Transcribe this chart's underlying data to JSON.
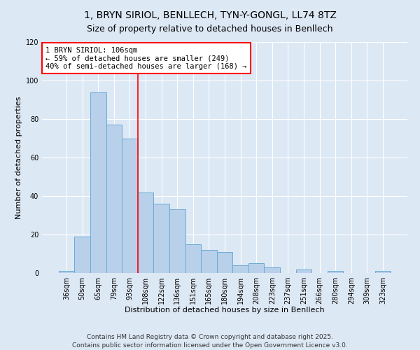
{
  "title": "1, BRYN SIRIOL, BENLLECH, TYN-Y-GONGL, LL74 8TZ",
  "subtitle": "Size of property relative to detached houses in Benllech",
  "xlabel": "Distribution of detached houses by size in Benllech",
  "ylabel": "Number of detached properties",
  "categories": [
    "36sqm",
    "50sqm",
    "65sqm",
    "79sqm",
    "93sqm",
    "108sqm",
    "122sqm",
    "136sqm",
    "151sqm",
    "165sqm",
    "180sqm",
    "194sqm",
    "208sqm",
    "223sqm",
    "237sqm",
    "251sqm",
    "266sqm",
    "280sqm",
    "294sqm",
    "309sqm",
    "323sqm"
  ],
  "values": [
    1,
    19,
    94,
    77,
    70,
    42,
    36,
    33,
    15,
    12,
    11,
    4,
    5,
    3,
    0,
    2,
    0,
    1,
    0,
    0,
    1
  ],
  "bar_color": "#b8d0ea",
  "bar_edge_color": "#6aaad4",
  "vline_color": "red",
  "vline_index": 4.5,
  "annotation_title": "1 BRYN SIRIOL: 106sqm",
  "annotation_line2": "← 59% of detached houses are smaller (249)",
  "annotation_line3": "40% of semi-detached houses are larger (168) →",
  "annotation_box_color": "white",
  "annotation_box_edge_color": "red",
  "ylim": [
    0,
    120
  ],
  "yticks": [
    0,
    20,
    40,
    60,
    80,
    100,
    120
  ],
  "footer_line1": "Contains HM Land Registry data © Crown copyright and database right 2025.",
  "footer_line2": "Contains public sector information licensed under the Open Government Licence v3.0.",
  "background_color": "#dde8f5",
  "plot_background_color": "#dde8f5",
  "title_fontsize": 10,
  "subtitle_fontsize": 9,
  "axis_label_fontsize": 8,
  "tick_fontsize": 7,
  "footer_fontsize": 6.5,
  "annotation_fontsize": 7.5
}
